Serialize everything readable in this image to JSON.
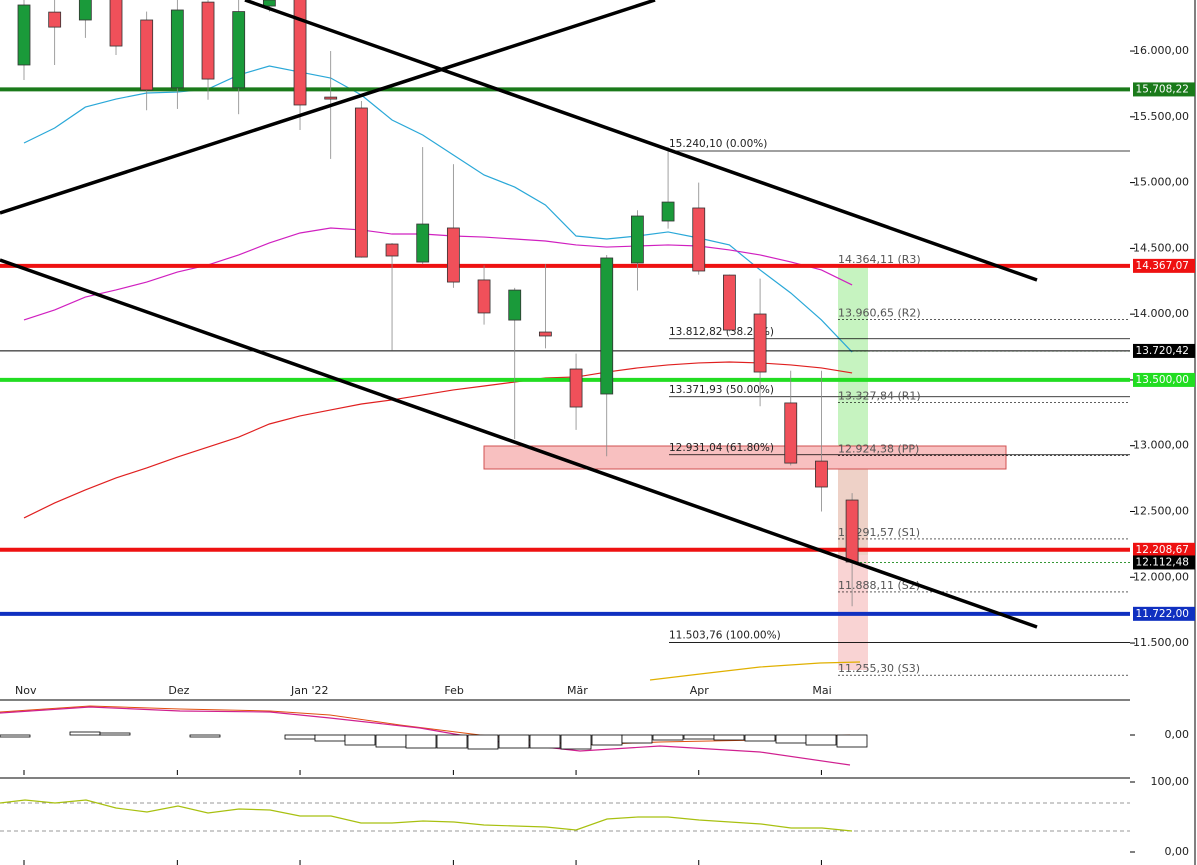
{
  "chart_data": {
    "type": "candlestick",
    "up_color": "#1a9a3a",
    "down_color": "#f0505a",
    "ylim": [
      11219,
      16388
    ],
    "yticks": [
      {
        "value": 16000,
        "label": "16.000,00"
      },
      {
        "value": 15500,
        "label": "15.500,00"
      },
      {
        "value": 15000,
        "label": "15.000,00"
      },
      {
        "value": 14500,
        "label": "14.500,00"
      },
      {
        "value": 14000,
        "label": "14.000,00"
      },
      {
        "value": 13500,
        "label": "13.500,00"
      },
      {
        "value": 13000,
        "label": "13.000,00"
      },
      {
        "value": 12500,
        "label": "12.500,00"
      },
      {
        "value": 12000,
        "label": "12.000,00"
      },
      {
        "value": 11500,
        "label": "11.500,00"
      }
    ],
    "open": [
      15894,
      16296,
      16236,
      16400,
      16236,
      15720,
      16372,
      15720,
      16342,
      16400,
      15650,
      15567,
      14533,
      14396,
      14655,
      14260,
      13955,
      13864,
      13583,
      13393,
      14389,
      14708,
      14807,
      14297,
      14001,
      13325,
      12883,
      12587
    ],
    "high": [
      16420,
      16450,
      16450,
      16420,
      16300,
      16400,
      16400,
      16400,
      16400,
      16420,
      16000,
      15620,
      14540,
      15270,
      15140,
      14370,
      14200,
      14380,
      13700,
      14450,
      14790,
      15270,
      15000,
      14300,
      14270,
      13570,
      13570,
      12640
    ],
    "low": [
      15780,
      15894,
      16100,
      15970,
      15550,
      15560,
      15630,
      15520,
      16300,
      15400,
      15180,
      14430,
      13727,
      14380,
      14200,
      13920,
      13050,
      13740,
      13120,
      12920,
      14180,
      14650,
      14300,
      13870,
      13300,
      12850,
      12500,
      11780
    ],
    "close": [
      16350,
      16182,
      16400,
      16038,
      15704,
      16312,
      15787,
      16300,
      16388,
      15590,
      15640,
      14434,
      14442,
      14685,
      14244,
      14009,
      14183,
      13834,
      13294,
      14427,
      14746,
      14852,
      14328,
      13879,
      13560,
      12868,
      12686,
      12116
    ],
    "months": [
      {
        "label": "Nov",
        "candle": 0
      },
      {
        "label": "Dez",
        "candle": 5
      },
      {
        "label": "Jan '22",
        "candle": 9
      },
      {
        "label": "Feb",
        "candle": 14
      },
      {
        "label": "Mär",
        "candle": 18
      },
      {
        "label": "Apr",
        "candle": 22
      },
      {
        "label": "Mai",
        "candle": 26
      }
    ],
    "moving_averages": [
      {
        "color": "#2aa8d8",
        "values": [
          15301,
          15415,
          15574,
          15635,
          15681,
          15688,
          15711,
          15818,
          15886,
          15840,
          15795,
          15666,
          15476,
          15362,
          15210,
          15058,
          14966,
          14830,
          14594,
          14571,
          14594,
          14625,
          14579,
          14526,
          14336,
          14161,
          13956,
          13712
        ]
      },
      {
        "color": "#d020c0",
        "values": [
          13956,
          14032,
          14130,
          14184,
          14244,
          14320,
          14374,
          14450,
          14541,
          14617,
          14655,
          14640,
          14609,
          14609,
          14594,
          14586,
          14571,
          14556,
          14526,
          14510,
          14518,
          14526,
          14518,
          14488,
          14450,
          14397,
          14336,
          14222
        ]
      },
      {
        "color": "#e02020",
        "values": [
          12451,
          12565,
          12664,
          12755,
          12831,
          12914,
          12990,
          13066,
          13165,
          13226,
          13272,
          13317,
          13348,
          13386,
          13424,
          13454,
          13484,
          13515,
          13522,
          13560,
          13591,
          13614,
          13629,
          13636,
          13629,
          13614,
          13591,
          13553
        ]
      }
    ],
    "levels": [
      {
        "value": 15708.22,
        "label": "15.708,22",
        "color": "#1a7a1a",
        "thick": true
      },
      {
        "value": 14367.07,
        "label": "14.367,07",
        "color": "#ee1111",
        "thick": true
      },
      {
        "value": 13720.42,
        "label": "13.720,42",
        "color": "#000000",
        "thick": false
      },
      {
        "value": 13500.0,
        "label": "13.500,00",
        "color": "#22dd22",
        "thick": true
      },
      {
        "value": 12208.67,
        "label": "12.208,67",
        "color": "#ee1111",
        "thick": true
      },
      {
        "value": 12112.48,
        "label": "12.112,48",
        "color": "#000000",
        "thick": false
      },
      {
        "value": 11722.0,
        "label": "11.722,00",
        "color": "#1030c0",
        "thick": true
      }
    ],
    "fib": [
      {
        "value": 15240.1,
        "label": "15.240,10 (0.00%)"
      },
      {
        "value": 13812.82,
        "label": "13.812,82 (38.20%)"
      },
      {
        "value": 13371.93,
        "label": "13.371,93 (50.00%)"
      },
      {
        "value": 12931.04,
        "label": "12.931,04 (61.80%)"
      },
      {
        "value": 11503.76,
        "label": "11.503,76 (100.00%)"
      }
    ],
    "pivots": [
      {
        "value": 14364.11,
        "label": "14.364,11 (R3)"
      },
      {
        "value": 13960.65,
        "label": "13.960,65 (R2)"
      },
      {
        "value": 13327.84,
        "label": "13.327,84 (R1)"
      },
      {
        "value": 12924.38,
        "label": "12.924,38 (PP)"
      },
      {
        "value": 12291.57,
        "label": "12.291,57 (S1)"
      },
      {
        "value": 11888.11,
        "label": "11.888,11 (S2)"
      },
      {
        "value": 11255.3,
        "label": "11.255,30 (S3)"
      }
    ],
    "panels": [
      {
        "ticks": [
          {
            "value": 0,
            "label": "0,00"
          }
        ]
      },
      {
        "ticks": [
          {
            "value": 100,
            "label": "100,00"
          },
          {
            "value": 0,
            "label": "0,00"
          }
        ]
      }
    ]
  }
}
